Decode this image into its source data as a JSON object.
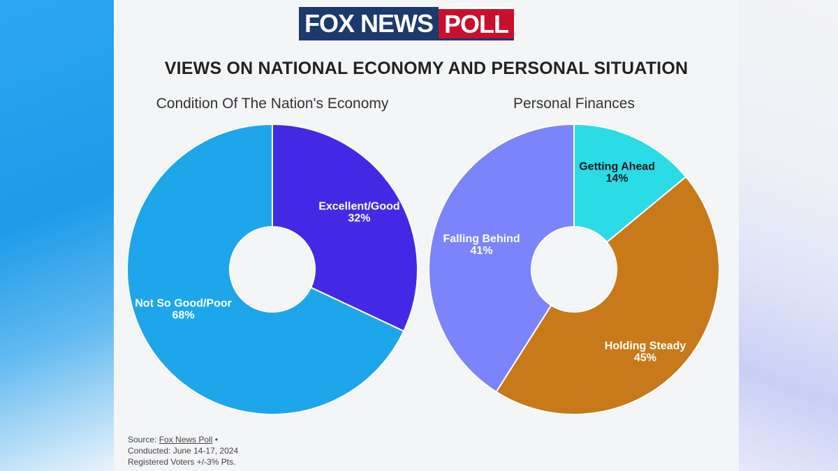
{
  "logo": {
    "fox": "FOX NEWS",
    "poll": "POLL"
  },
  "title": "VIEWS ON NATIONAL ECONOMY AND PERSONAL SITUATION",
  "chart_data": [
    {
      "type": "pie",
      "title": "Condition Of The Nation's Economy",
      "slices": [
        {
          "label": "Excellent/Good",
          "value": 32,
          "display": "32%",
          "color": "#4329e6",
          "text_color": "#ffffff"
        },
        {
          "label": "Not So Good/Poor",
          "value": 68,
          "display": "68%",
          "color": "#1ea6ea",
          "text_color": "#ffffff"
        }
      ]
    },
    {
      "type": "pie",
      "title": "Personal Finances",
      "slices": [
        {
          "label": "Getting Ahead",
          "value": 14,
          "display": "14%",
          "color": "#2bdbe6",
          "text_color": "#1a1a1a"
        },
        {
          "label": "Holding Steady",
          "value": 45,
          "display": "45%",
          "color": "#c8791a",
          "text_color": "#ffffff"
        },
        {
          "label": "Falling Behind",
          "value": 41,
          "display": "41%",
          "color": "#7b84fb",
          "text_color": "#ffffff"
        }
      ]
    }
  ],
  "source": {
    "prefix": "Source: ",
    "link": "Fox News Poll",
    "bullet": " •",
    "conducted": "Conducted: June 14-17, 2024",
    "voters": "Registered Voters +/-3% Pts."
  }
}
